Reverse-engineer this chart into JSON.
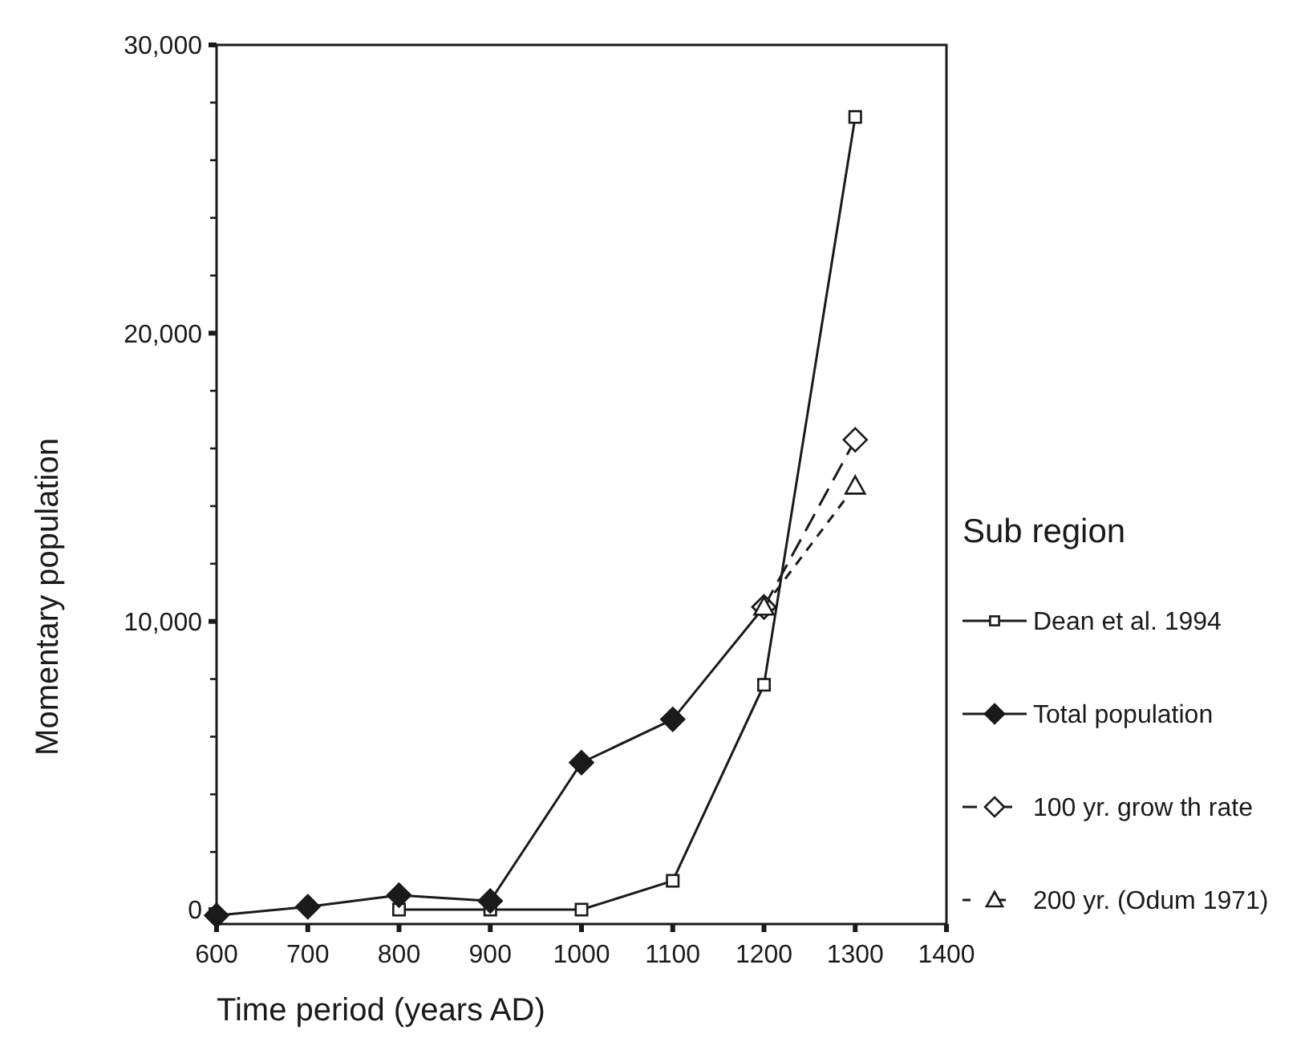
{
  "chart_data": {
    "type": "line",
    "xlabel": "Time period (years AD)",
    "ylabel": "Momentary population",
    "legend_title": "Sub region",
    "legend": "right",
    "grid": false,
    "xlim": [
      600,
      1400
    ],
    "xticks": [
      600,
      700,
      800,
      900,
      1000,
      1100,
      1200,
      1300,
      1400
    ],
    "ylim": [
      -500,
      30000
    ],
    "yticks": [
      {
        "value": 0,
        "label": "0"
      },
      {
        "value": 2000,
        "label": null
      },
      {
        "value": 4000,
        "label": null
      },
      {
        "value": 6000,
        "label": null
      },
      {
        "value": 8000,
        "label": null
      },
      {
        "value": 10000,
        "label": "10,000"
      },
      {
        "value": 12000,
        "label": null
      },
      {
        "value": 14000,
        "label": null
      },
      {
        "value": 16000,
        "label": null
      },
      {
        "value": 18000,
        "label": null
      },
      {
        "value": 20000,
        "label": "20,000"
      },
      {
        "value": 22000,
        "label": null
      },
      {
        "value": 24000,
        "label": null
      },
      {
        "value": 26000,
        "label": null
      },
      {
        "value": 28000,
        "label": null
      },
      {
        "value": 30000,
        "label": "30,000"
      }
    ],
    "series": [
      {
        "name": "Dean et al. 1994",
        "color": "#1a1a1a",
        "marker": "square",
        "line_style": "solid",
        "x": [
          800,
          900,
          1000,
          1100,
          1200,
          1300
        ],
        "values": [
          0,
          0,
          0,
          1000,
          7800,
          27500
        ]
      },
      {
        "name": "Total population",
        "color": "#1a1a1a",
        "marker": "diamond",
        "line_style": "solid",
        "x": [
          600,
          700,
          800,
          900,
          1000,
          1100,
          1200
        ],
        "values": [
          -200,
          100,
          500,
          300,
          5100,
          6600,
          10500
        ]
      },
      {
        "name": "100 yr. grow th rate",
        "color": "#1a1a1a",
        "marker": "diamond",
        "line_style": "dashed",
        "x": [
          1200,
          1300
        ],
        "values": [
          10500,
          16300
        ]
      },
      {
        "name": "200 yr. (Odum 1971)",
        "color": "#1a1a1a",
        "marker": "triangle",
        "line_style": "dotted",
        "x": [
          1200,
          1300
        ],
        "values": [
          10500,
          14700
        ]
      }
    ]
  }
}
